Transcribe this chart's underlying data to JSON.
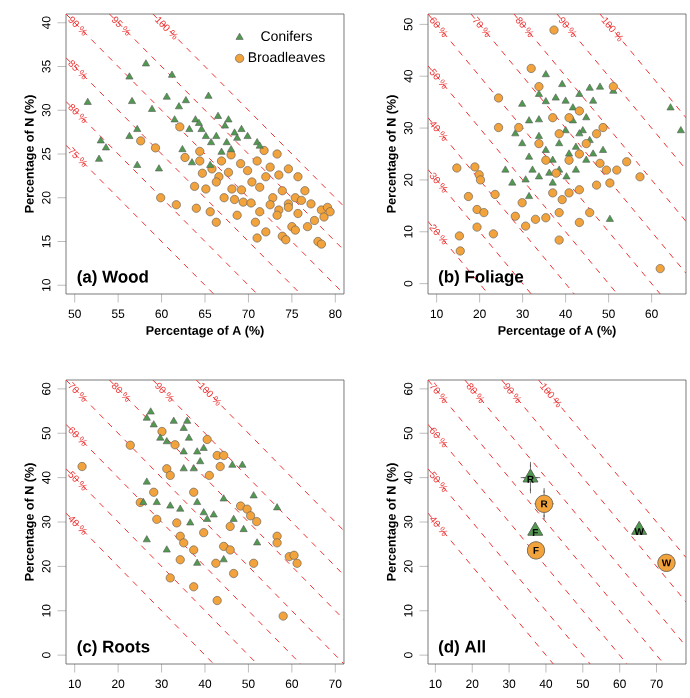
{
  "chart_data": [
    {
      "type": "scatter",
      "xlabel": "Percentage of A (%)",
      "ylabel": "Percentage of N (%)",
      "xlim": [
        49,
        81
      ],
      "ylim": [
        9,
        41
      ],
      "xticks": [
        50,
        55,
        60,
        65,
        70,
        75,
        80
      ],
      "yticks": [
        10,
        15,
        20,
        25,
        30,
        35,
        40
      ],
      "legend": "top right",
      "annotations": [
        "(a) Wood"
      ],
      "series": [
        {
          "type": "line",
          "name": "75 %",
          "color": "#ee3333",
          "line_style": "dashed",
          "x": [
            49,
            66
          ],
          "values": [
            26,
            9
          ]
        },
        {
          "type": "line",
          "name": "80 %",
          "color": "#ee3333",
          "line_style": "dashed",
          "x": [
            49,
            71
          ],
          "values": [
            31,
            9
          ]
        },
        {
          "type": "line",
          "name": "85 %",
          "color": "#ee3333",
          "line_style": "dashed",
          "x": [
            49,
            76
          ],
          "values": [
            36,
            9
          ]
        },
        {
          "type": "line",
          "name": "90 %",
          "color": "#ee3333",
          "line_style": "dashed",
          "x": [
            49,
            81
          ],
          "values": [
            41,
            9
          ]
        },
        {
          "type": "line",
          "name": "95 %",
          "color": "#ee3333",
          "line_style": "dashed",
          "x": [
            54,
            81
          ],
          "values": [
            41,
            14
          ]
        },
        {
          "type": "line",
          "name": "100 %",
          "color": "#ee3333",
          "line_style": "dashed",
          "x": [
            59,
            81
          ],
          "values": [
            41,
            19
          ]
        },
        {
          "name": "Broadleaves",
          "color": "#f2a33c",
          "marker": "circle",
          "x": [
            59.3,
            57.6,
            59.9,
            62.1,
            62.7,
            64,
            65.1,
            65.6,
            66.3,
            64.7,
            64.4,
            67.2,
            68.1,
            68.7,
            69.4,
            70.8,
            70.3,
            71.3,
            72,
            72.5,
            73.3,
            71.8,
            71,
            69.9,
            69.1,
            68,
            66.9,
            65.8,
            66.6,
            67.7,
            72.8,
            73.5,
            73.9,
            74.6,
            75.4,
            75.7,
            76.5,
            77.2,
            78.4,
            79.1,
            78.7,
            77.6,
            76.8,
            75,
            73.9,
            74.3,
            72,
            71,
            78,
            78.4,
            75.4,
            75.7,
            74.6,
            73.5,
            70.4,
            69.2,
            71.3,
            72.5,
            73.3,
            74.6,
            76.1,
            79.4,
            66.3,
            68.4,
            63.8,
            64.4,
            61.7
          ],
          "values": [
            25.7,
            26.5,
            20,
            28.1,
            24.6,
            18.8,
            21,
            18.4,
            17.2,
            22.8,
            24.2,
            20,
            21,
            18,
            19.5,
            17.2,
            19.4,
            21.2,
            22.4,
            23.5,
            25,
            25.4,
            24.2,
            23.1,
            23.9,
            24.9,
            24.2,
            23.3,
            22.4,
            22.9,
            20,
            18.6,
            20.8,
            19.3,
            20,
            18.2,
            20.8,
            19.3,
            18.6,
            18.9,
            17.8,
            17.4,
            16.7,
            16.7,
            15.6,
            15.2,
            16.1,
            15.4,
            15,
            14.7,
            16.3,
            22.4,
            23.3,
            22.6,
            21.8,
            20.9,
            18.4,
            19.2,
            18,
            18.9,
            19.7,
            18.4,
            21.8,
            19.8,
            21.3,
            25.3,
            19.2
          ]
        },
        {
          "name": "Conifers",
          "color": "#4f9a4f",
          "marker": "triangle",
          "x": [
            51.5,
            53,
            53.6,
            52.8,
            56.3,
            56.6,
            56.3,
            57.2,
            57.2,
            58.2,
            58.9,
            59.7,
            61.2,
            60.6,
            62,
            61.5,
            62.4,
            62.8,
            63.9,
            63.5,
            65.4,
            64.6,
            65.7,
            66.5,
            67.3,
            67.7,
            68.4,
            69.2,
            69.9,
            71,
            68,
            66.9,
            65.1,
            64.3,
            63.2,
            66.3,
            67.5,
            68.7,
            71.3,
            65.6
          ],
          "values": [
            30.9,
            26.5,
            25.7,
            24.4,
            33.8,
            31,
            27,
            27.8,
            23.7,
            35.3,
            30.1,
            23.3,
            34,
            31.5,
            30.4,
            28.9,
            25.5,
            31.1,
            28.9,
            24,
            31.6,
            27.8,
            26.3,
            29.3,
            28.2,
            28.9,
            27.4,
            27.8,
            27,
            26.3,
            25.5,
            25.2,
            27,
            28.5,
            27.8,
            27,
            26.3,
            26.8,
            25.9,
            23.7
          ]
        }
      ]
    },
    {
      "type": "scatter",
      "xlabel": "Percentage of A (%)",
      "ylabel": "Percentage of N (%)",
      "xlim": [
        8,
        68
      ],
      "ylim": [
        -2,
        52
      ],
      "xticks": [
        10,
        20,
        30,
        40,
        50,
        60
      ],
      "yticks": [
        0,
        10,
        20,
        30,
        40,
        50
      ],
      "annotations": [
        "(b) Foliage"
      ],
      "series": [
        {
          "type": "line",
          "name": "20 %",
          "color": "#ee3333",
          "line_style": "dashed",
          "x": [
            8,
            22
          ],
          "values": [
            12,
            -2
          ]
        },
        {
          "type": "line",
          "name": "30 %",
          "color": "#ee3333",
          "line_style": "dashed",
          "x": [
            8,
            32
          ],
          "values": [
            22,
            -2
          ]
        },
        {
          "type": "line",
          "name": "40 %",
          "color": "#ee3333",
          "line_style": "dashed",
          "x": [
            8,
            42
          ],
          "values": [
            32,
            -2
          ]
        },
        {
          "type": "line",
          "name": "50 %",
          "color": "#ee3333",
          "line_style": "dashed",
          "x": [
            8,
            52
          ],
          "values": [
            42,
            -2
          ]
        },
        {
          "type": "line",
          "name": "60 %",
          "color": "#ee3333",
          "line_style": "dashed",
          "x": [
            8,
            62
          ],
          "values": [
            52,
            -2
          ]
        },
        {
          "type": "line",
          "name": "70 %",
          "color": "#ee3333",
          "line_style": "dashed",
          "x": [
            18,
            68
          ],
          "values": [
            52,
            2
          ]
        },
        {
          "type": "line",
          "name": "80 %",
          "color": "#ee3333",
          "line_style": "dashed",
          "x": [
            28,
            68
          ],
          "values": [
            52,
            12
          ]
        },
        {
          "type": "line",
          "name": "90 %",
          "color": "#ee3333",
          "line_style": "dashed",
          "x": [
            38,
            68
          ],
          "values": [
            52,
            22
          ]
        },
        {
          "type": "line",
          "name": "100 %",
          "color": "#ee3333",
          "line_style": "dashed",
          "x": [
            48,
            68
          ],
          "values": [
            52,
            32
          ]
        },
        {
          "color": "#4f9a4f",
          "marker": "triangle",
          "x": [
            29.9,
            31.5,
            33.8,
            35.4,
            37.7,
            39.2,
            40,
            43.2,
            45.6,
            48,
            51.1,
            64.4,
            66.8,
            28.3,
            29.9,
            31.5,
            32.3,
            30.7,
            27.6,
            26,
            33.8,
            36.2,
            37,
            38.5,
            40,
            41.7,
            44,
            45.6,
            42.4,
            40.8,
            38.5,
            37,
            40.2,
            42.4,
            44.8,
            46.4,
            48.7,
            46.4,
            41.7,
            33.8,
            35.4,
            31.5,
            50.3,
            33.8,
            35.4,
            43.2,
            44.8
          ],
          "values": [
            34.6,
            31.4,
            31.6,
            35.1,
            35.8,
            38.4,
            35.2,
            36.5,
            37.7,
            37.9,
            37.1,
            33.9,
            29.5,
            28.9,
            27,
            24.4,
            21.9,
            20,
            19.4,
            21.9,
            20.6,
            21.3,
            23.8,
            27,
            29.5,
            31.4,
            29.5,
            27.6,
            26.3,
            25,
            21.9,
            19.4,
            20.6,
            21.9,
            23.8,
            25,
            25.7,
            35.2,
            33.9,
            36.5,
            40.3,
            16.8,
            12.4,
            28.4,
            25.7,
            28.9,
            32
          ]
        },
        {
          "color": "#f2a33c",
          "marker": "circle",
          "x": [
            37.3,
            32,
            33.8,
            51.1,
            24.4,
            24.4,
            29.1,
            14.7,
            18.9,
            19.9,
            20.2,
            17.4,
            19.4,
            21,
            19.4,
            23.6,
            23.2,
            15.3,
            15.5,
            33,
            35.4,
            38.5,
            38.5,
            43.2,
            45.6,
            47.2,
            49.5,
            50.3,
            51.9,
            54.2,
            57.3,
            62,
            48.7,
            39.2,
            40.8,
            43.2,
            37,
            37.8,
            40.8,
            43.2,
            38.5,
            37,
            40.8,
            43.2,
            44.8,
            47.2,
            48,
            35.4,
            33.8,
            29.9,
            28.3,
            30.7
          ],
          "values": [
            48.9,
            41.5,
            38,
            38,
            35.8,
            30.1,
            30.1,
            22.3,
            22.5,
            21,
            20,
            16.8,
            14.3,
            13.7,
            10.9,
            17.2,
            9.6,
            9.2,
            6.3,
            12.4,
            12.7,
            13.7,
            8.4,
            11.8,
            13.7,
            19,
            21.9,
            19.4,
            21.9,
            23.5,
            20.6,
            2.9,
            30.1,
            16.2,
            17.5,
            18.1,
            17.5,
            21.3,
            23.8,
            25,
            28.9,
            32,
            32,
            33.3,
            27,
            28.9,
            23.2,
            23.8,
            27,
            15.6,
            13,
            11.1
          ]
        }
      ]
    },
    {
      "type": "scatter",
      "ylabel": "Percentage of N (%)",
      "xlim": [
        8,
        72
      ],
      "ylim": [
        -2,
        62
      ],
      "xticks": [
        10,
        20,
        30,
        40,
        50,
        60,
        70
      ],
      "yticks": [
        0,
        10,
        20,
        30,
        40,
        50,
        60
      ],
      "annotations": [
        "(c) Roots"
      ],
      "series": [
        {
          "type": "line",
          "name": "40 %",
          "color": "#ee3333",
          "line_style": "dashed",
          "x": [
            8,
            42
          ],
          "values": [
            32,
            -2
          ]
        },
        {
          "type": "line",
          "name": "50 %",
          "color": "#ee3333",
          "line_style": "dashed",
          "x": [
            8,
            52
          ],
          "values": [
            42,
            -2
          ]
        },
        {
          "type": "line",
          "name": "60 %",
          "color": "#ee3333",
          "line_style": "dashed",
          "x": [
            8,
            62
          ],
          "values": [
            52,
            -2
          ]
        },
        {
          "type": "line",
          "name": "70 %",
          "color": "#ee3333",
          "line_style": "dashed",
          "x": [
            8,
            72
          ],
          "values": [
            62,
            -2
          ]
        },
        {
          "type": "line",
          "name": "80 %",
          "color": "#ee3333",
          "line_style": "dashed",
          "x": [
            18,
            72
          ],
          "values": [
            62,
            8
          ]
        },
        {
          "type": "line",
          "name": "90 %",
          "color": "#ee3333",
          "line_style": "dashed",
          "x": [
            28,
            72
          ],
          "values": [
            62,
            18
          ]
        },
        {
          "type": "line",
          "name": "100 %",
          "color": "#ee3333",
          "line_style": "dashed",
          "x": [
            38,
            72
          ],
          "values": [
            62,
            28
          ]
        },
        {
          "color": "#f2a33c",
          "marker": "circle",
          "x": [
            11.7,
            22.8,
            25.1,
            28.2,
            28.9,
            31.2,
            32,
            30.1,
            33.1,
            33.5,
            34.3,
            35.1,
            34.3,
            32,
            37.4,
            37.4,
            37.4,
            39.7,
            40.5,
            42.8,
            44.3,
            43.5,
            42.8,
            42.5,
            44.3,
            45.8,
            46.6,
            48.2,
            49.7,
            50.5,
            51.9,
            51.2,
            56.6,
            56.6,
            59.4,
            60.5,
            61.2,
            58,
            41,
            45.8
          ],
          "values": [
            42.5,
            47.3,
            34.4,
            36.7,
            30.6,
            42,
            40.5,
            50.4,
            47.4,
            29.8,
            26.8,
            25.3,
            21.5,
            17.4,
            23.7,
            15.4,
            36.7,
            27.6,
            48.6,
            45,
            45,
            42.5,
            12.3,
            20.7,
            24.5,
            23.7,
            18.4,
            33.6,
            32.9,
            31.4,
            30.1,
            20.7,
            26.8,
            25.3,
            22.2,
            22.5,
            20.7,
            8.8,
            40.5,
            29
          ]
        },
        {
          "color": "#4f9a4f",
          "marker": "triangle",
          "x": [
            26.6,
            28.2,
            27.5,
            29.7,
            31.2,
            32.8,
            35.1,
            35.9,
            36.3,
            35.1,
            38.2,
            39.7,
            38.9,
            37.4,
            35.1,
            46.3,
            48.6,
            26.6,
            25.8,
            28.9,
            32,
            34.3,
            38.2,
            39.7,
            36.6,
            42,
            44.3,
            46.6,
            48.9,
            51.2,
            52,
            56.6,
            26.6,
            31.2,
            38.2,
            44.3,
            40.5
          ],
          "values": [
            53.4,
            51.9,
            54.8,
            48.9,
            48.1,
            52.7,
            51.1,
            52.7,
            48.9,
            45.8,
            45.8,
            46.6,
            43.6,
            42,
            42,
            42.8,
            42.8,
            39,
            34.4,
            34.4,
            33.6,
            32.9,
            34.4,
            32.1,
            29.8,
            31.6,
            35.2,
            30.6,
            28.3,
            35.9,
            25.3,
            33.2,
            26,
            23.7,
            20.7,
            21.5,
            30.6
          ]
        }
      ]
    },
    {
      "type": "scatter",
      "ylabel": "Percentage of N (%)",
      "xlim": [
        8,
        78
      ],
      "ylim": [
        -2,
        62
      ],
      "xticks": [
        10,
        20,
        30,
        40,
        50,
        60,
        70
      ],
      "yticks": [
        0,
        10,
        20,
        30,
        40,
        50,
        60
      ],
      "annotations": [
        "(d) All"
      ],
      "series": [
        {
          "type": "line",
          "name": "40 %",
          "color": "#ee3333",
          "line_style": "dashed",
          "x": [
            8,
            42
          ],
          "values": [
            32,
            -2
          ]
        },
        {
          "type": "line",
          "name": "50 %",
          "color": "#ee3333",
          "line_style": "dashed",
          "x": [
            8,
            52
          ],
          "values": [
            42,
            -2
          ]
        },
        {
          "type": "line",
          "name": "60 %",
          "color": "#ee3333",
          "line_style": "dashed",
          "x": [
            8,
            62
          ],
          "values": [
            52,
            -2
          ]
        },
        {
          "type": "line",
          "name": "70 %",
          "color": "#ee3333",
          "line_style": "dashed",
          "x": [
            8,
            72
          ],
          "values": [
            62,
            -2
          ]
        },
        {
          "type": "line",
          "name": "80 %",
          "color": "#ee3333",
          "line_style": "dashed",
          "x": [
            18,
            78
          ],
          "values": [
            62,
            2
          ]
        },
        {
          "type": "line",
          "name": "90 %",
          "color": "#ee3333",
          "line_style": "dashed",
          "x": [
            28,
            78
          ],
          "values": [
            62,
            12
          ]
        },
        {
          "type": "line",
          "name": "100 %",
          "color": "#ee3333",
          "line_style": "dashed",
          "x": [
            38,
            78
          ],
          "values": [
            62,
            22
          ]
        },
        {
          "color": "#4f9a4f",
          "marker": "triangle",
          "x": [
            35.8,
            37.1,
            65.3
          ],
          "values": [
            40,
            28,
            28.2
          ],
          "errors": [
            3,
            null,
            null
          ],
          "xerrors": [
            2,
            null,
            null
          ],
          "value_labels": [
            "R",
            "F",
            "W"
          ]
        },
        {
          "color": "#f2a33c",
          "marker": "circle",
          "x": [
            39.5,
            37.3,
            72.7
          ],
          "values": [
            34.1,
            23.6,
            20.8
          ],
          "errors": [
            3,
            null,
            null
          ],
          "xerrors": [
            2,
            null,
            null
          ],
          "value_labels": [
            "R",
            "F",
            "W"
          ]
        }
      ]
    }
  ]
}
